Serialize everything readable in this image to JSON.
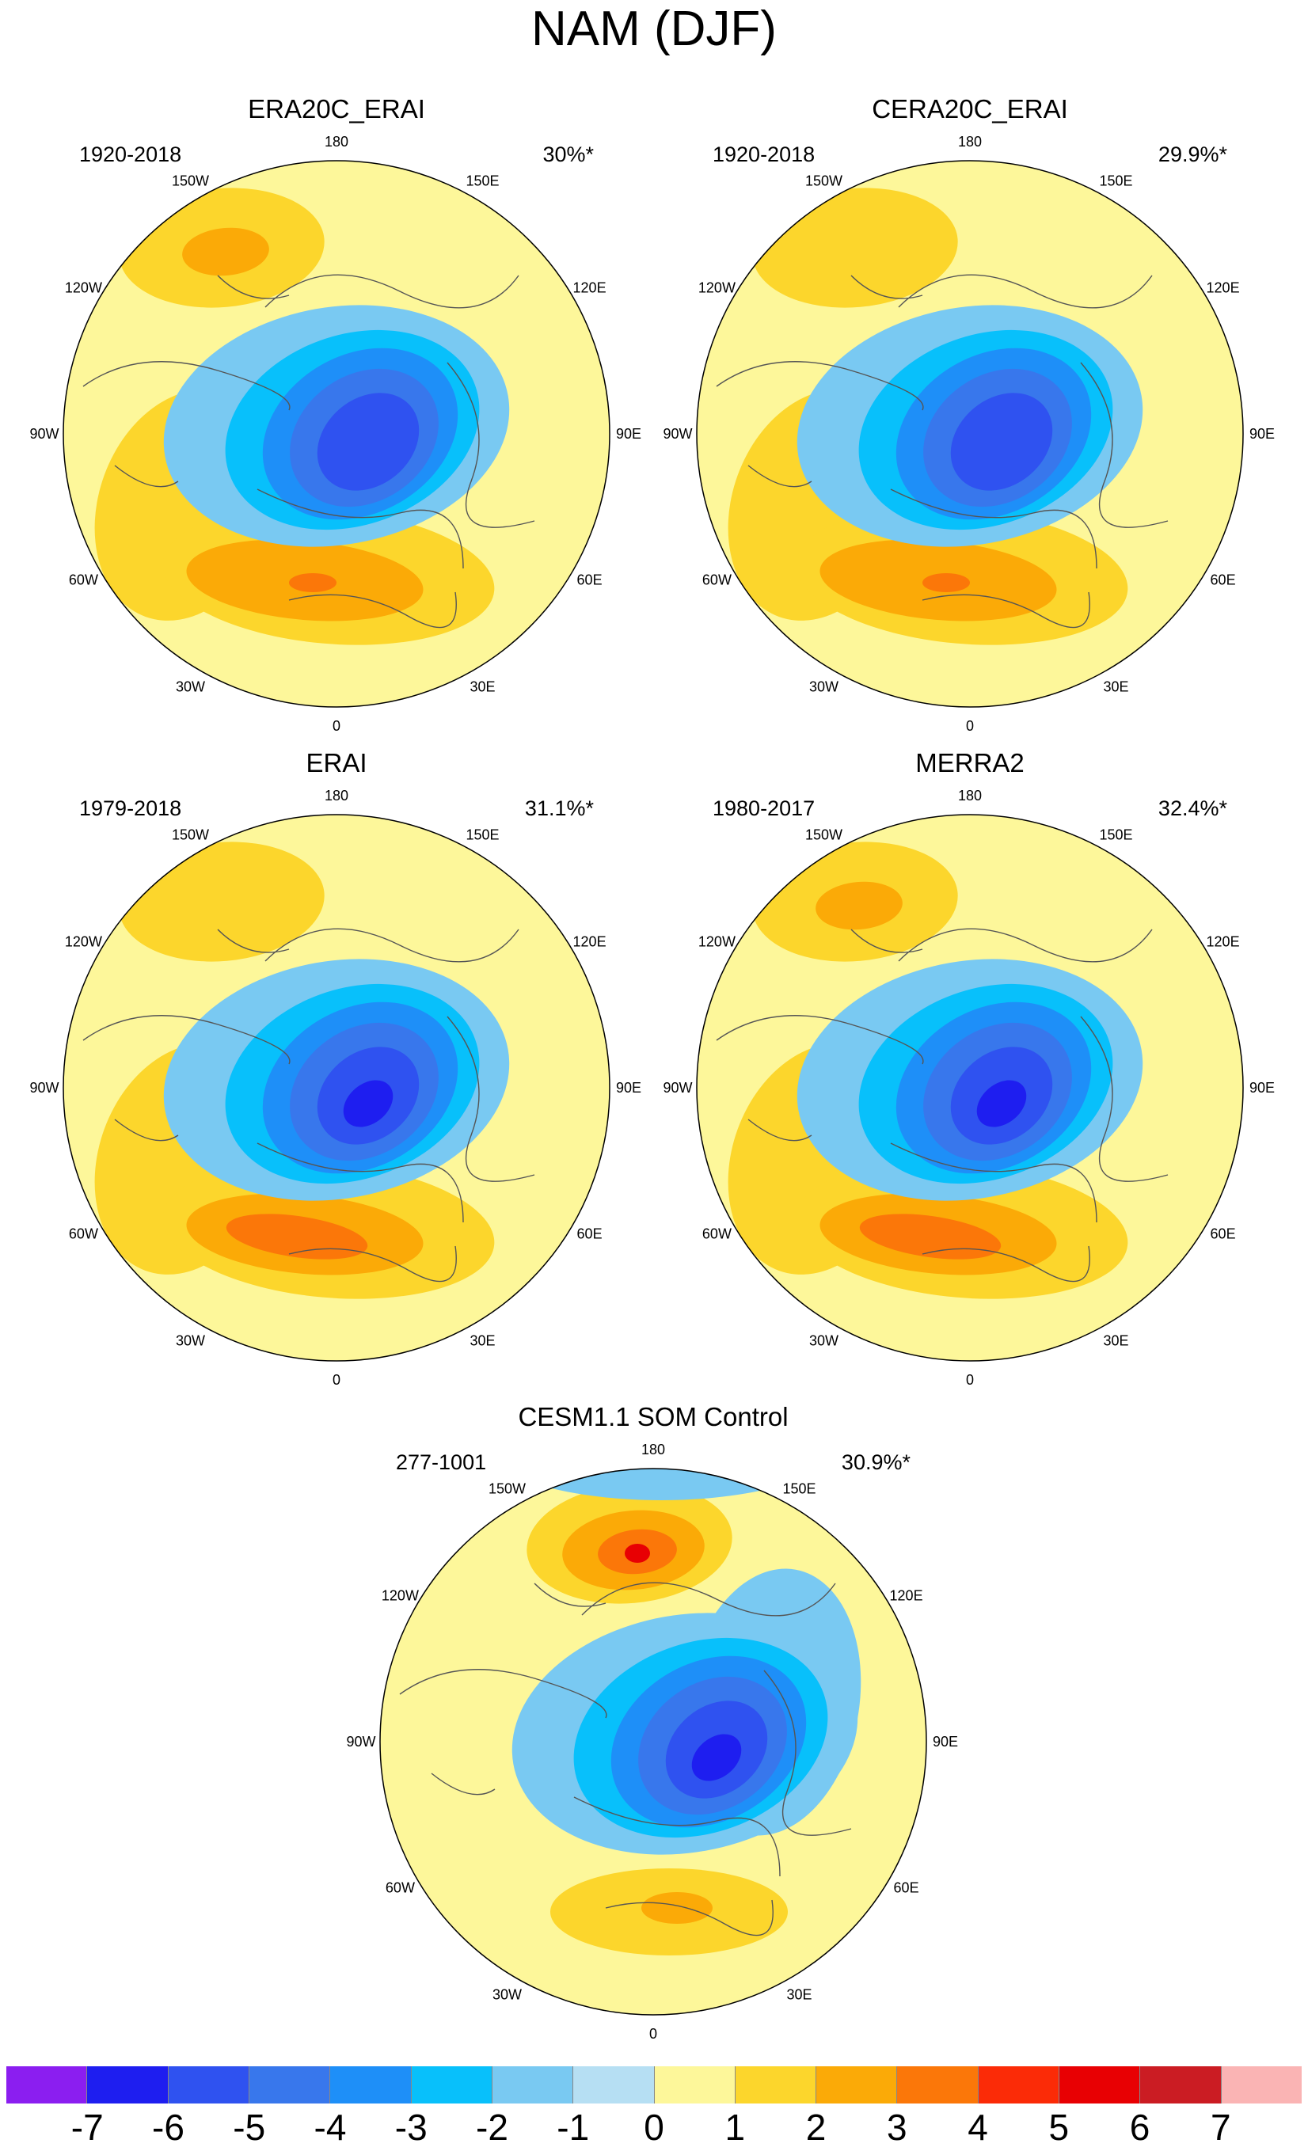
{
  "title": "NAM (DJF)",
  "colorbar": {
    "levels": [
      "-7",
      "-6",
      "-5",
      "-4",
      "-3",
      "-2",
      "-1",
      "0",
      "1",
      "2",
      "3",
      "4",
      "5",
      "6",
      "7"
    ],
    "colors": [
      "#8b1ef0",
      "#1e1ef0",
      "#2f52f0",
      "#3877ec",
      "#1e8ff8",
      "#08c0fb",
      "#79c9f2",
      "#b6dff3",
      "#fdf79a",
      "#fcd62c",
      "#fbaa07",
      "#fb7709",
      "#fb2b07",
      "#e80003",
      "#cb1c23",
      "#fab4b4"
    ]
  },
  "lon_labels": [
    "180",
    "150E",
    "120E",
    "90E",
    "60E",
    "30E",
    "0",
    "30W",
    "60W",
    "90W",
    "120W",
    "150W"
  ],
  "panels": [
    {
      "title": "ERA20C_ERAI",
      "period": "1920-2018",
      "variance": "30%*",
      "neg": 3,
      "pos": 3,
      "pac_strength": 2,
      "atl_strength": 3
    },
    {
      "title": "CERA20C_ERAI",
      "period": "1920-2018",
      "variance": "29.9%*",
      "neg": 3,
      "pos": 3,
      "pac_strength": 1,
      "atl_strength": 3
    },
    {
      "title": "ERAI",
      "period": "1979-2018",
      "variance": "31.1%*",
      "neg": 3,
      "pos": 3,
      "pac_strength": 1,
      "atl_strength": 3
    },
    {
      "title": "MERRA2",
      "period": "1980-2017",
      "variance": "32.4%*",
      "neg": 3,
      "pos": 3,
      "pac_strength": 2,
      "atl_strength": 3
    },
    {
      "title": "CESM1.1 SOM Control",
      "period": "277-1001",
      "variance": "30.9%*",
      "neg": 3,
      "pos": 3,
      "pac_strength": 4,
      "atl_strength": 3
    }
  ]
}
